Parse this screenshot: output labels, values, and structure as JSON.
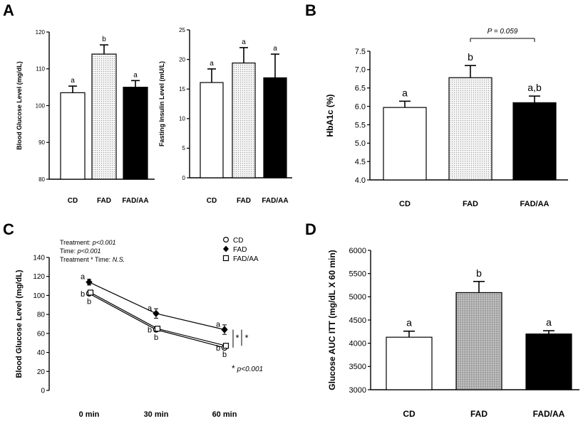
{
  "chart_data": [
    {
      "id": "A1",
      "panel_letter": "A",
      "type": "bar",
      "title": "",
      "xlabel": "",
      "ylabel": "Blood Glucose Level (mg/dL)",
      "ylim": [
        80,
        120
      ],
      "yticks": [
        80,
        90,
        100,
        110,
        120
      ],
      "ytick_labels": [
        "80",
        "90",
        "100",
        "110",
        "120"
      ],
      "categories": [
        "CD",
        "FAD",
        "FAD/AA"
      ],
      "values": [
        103.5,
        114,
        105
      ],
      "errors": [
        1.8,
        2.5,
        1.8
      ],
      "fills": [
        "white",
        "dots",
        "black"
      ],
      "letters": [
        "a",
        "b",
        "a"
      ]
    },
    {
      "id": "A2",
      "type": "bar",
      "title": "",
      "xlabel": "",
      "ylabel": "Fasting Insulin Level (mU/L)",
      "ylim": [
        0,
        25
      ],
      "yticks": [
        0,
        5,
        10,
        15,
        20,
        25
      ],
      "ytick_labels": [
        "0",
        "5",
        "10",
        "15",
        "20",
        "25"
      ],
      "categories": [
        "CD",
        "FAD",
        "FAD/AA"
      ],
      "values": [
        16.1,
        19.4,
        16.9
      ],
      "errors": [
        2.3,
        2.6,
        4.0
      ],
      "fills": [
        "white",
        "dots",
        "black"
      ],
      "letters": [
        "a",
        "a",
        "a"
      ]
    },
    {
      "id": "B",
      "panel_letter": "B",
      "type": "bar",
      "title": "",
      "xlabel": "",
      "ylabel": "HbA1c (%)",
      "ylim": [
        4.0,
        7.5
      ],
      "yticks": [
        4.0,
        4.5,
        5.0,
        5.5,
        6.0,
        6.5,
        7.0,
        7.5
      ],
      "ytick_labels": [
        "4.0",
        "4.5",
        "5.0",
        "5.5",
        "6.0",
        "6.5",
        "7.0",
        "7.5"
      ],
      "categories": [
        "CD",
        "FAD",
        "FAD/AA"
      ],
      "values": [
        5.97,
        6.78,
        6.1
      ],
      "errors": [
        0.17,
        0.33,
        0.18
      ],
      "fills": [
        "white",
        "dots",
        "black"
      ],
      "letters": [
        "a",
        "b",
        "a,b"
      ],
      "annotation": "P = 0.059"
    },
    {
      "id": "C",
      "panel_letter": "C",
      "type": "line",
      "title": "",
      "xlabel": "",
      "ylabel": "Blood Glucose Level (mg/dL)",
      "ylim": [
        0,
        140
      ],
      "yticks": [
        0,
        20,
        40,
        60,
        80,
        100,
        120,
        140
      ],
      "ytick_labels": [
        "0",
        "20",
        "40",
        "60",
        "80",
        "100",
        "120",
        "140"
      ],
      "categories": [
        "0 min",
        "30 min",
        "60 min"
      ],
      "series": [
        {
          "name": "CD",
          "marker": "circle-open",
          "values": [
            102,
            64,
            45
          ],
          "errors": [
            2,
            2,
            2
          ],
          "letters": [
            "b",
            "b",
            "b"
          ]
        },
        {
          "name": "FAD",
          "marker": "diamond-filled",
          "values": [
            114,
            81,
            64
          ],
          "errors": [
            3,
            5,
            5
          ],
          "letters": [
            "a",
            "a",
            "a"
          ]
        },
        {
          "name": "FAD/AA",
          "marker": "square-open",
          "values": [
            103,
            65,
            47
          ],
          "errors": [
            2,
            2,
            2
          ],
          "letters": [
            "b",
            "b",
            "b"
          ]
        }
      ],
      "stats": [
        {
          "label": "Treatment: ",
          "value": "p<0.001"
        },
        {
          "label": "Time: ",
          "value": "p<0.001"
        },
        {
          "label": "Treatment * Time: ",
          "value": "N.S."
        }
      ],
      "sig_mark": "*",
      "footnote": "p<0.001"
    },
    {
      "id": "D",
      "panel_letter": "D",
      "type": "bar",
      "title": "",
      "xlabel": "",
      "ylabel": "Glucose AUC ITT  (mg/dL X 60 min)",
      "ylim": [
        3000,
        6000
      ],
      "yticks": [
        3000,
        3500,
        4000,
        4500,
        5000,
        5500,
        6000
      ],
      "ytick_labels": [
        "3000",
        "3500",
        "4000",
        "4500",
        "5000",
        "5500",
        "6000"
      ],
      "categories": [
        "CD",
        "FAD",
        "FAD/AA"
      ],
      "values": [
        4130,
        5090,
        4200
      ],
      "errors": [
        130,
        240,
        70
      ],
      "fills": [
        "white",
        "dots",
        "black"
      ],
      "letters": [
        "a",
        "b",
        "a"
      ]
    }
  ]
}
